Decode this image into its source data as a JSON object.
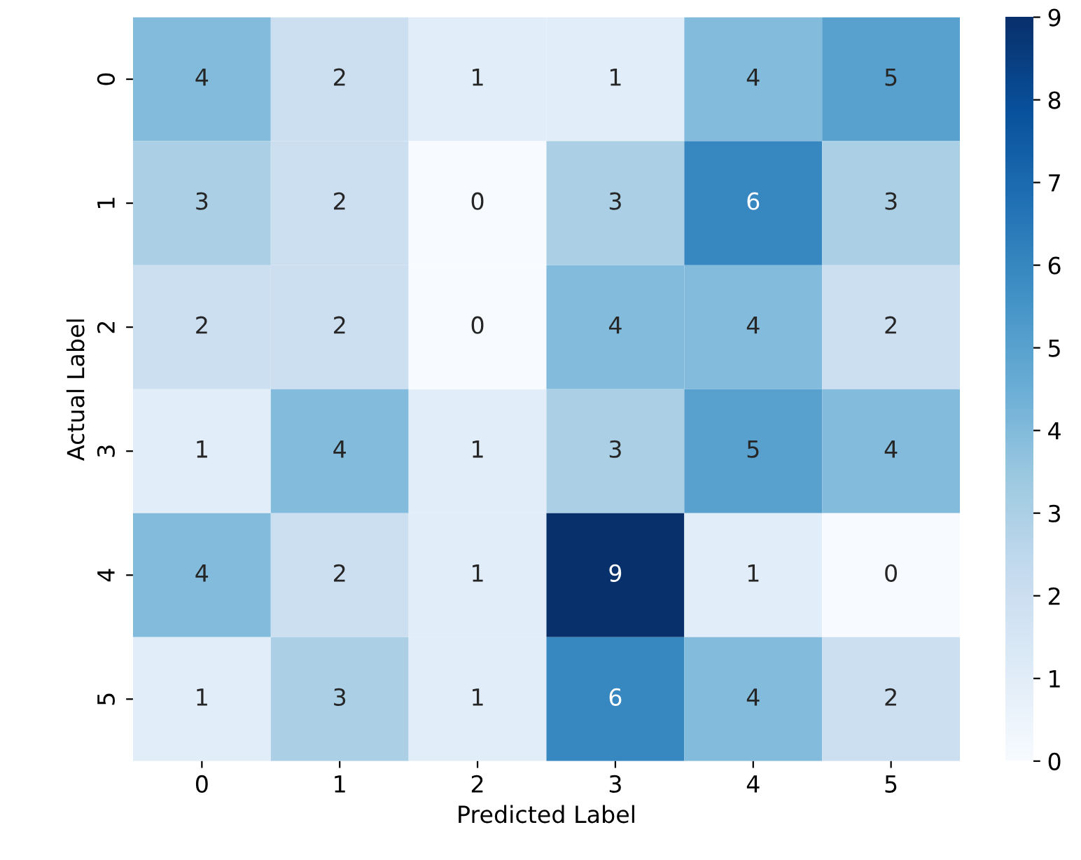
{
  "chart_data": {
    "type": "heatmap",
    "xlabel": "Predicted Label",
    "ylabel": "Actual Label",
    "categories": [
      "0",
      "1",
      "2",
      "3",
      "4",
      "5"
    ],
    "y_categories": [
      "0",
      "1",
      "2",
      "3",
      "4",
      "5"
    ],
    "cells": [
      [
        4,
        2,
        1,
        1,
        4,
        5
      ],
      [
        3,
        2,
        0,
        3,
        6,
        3
      ],
      [
        2,
        2,
        0,
        4,
        4,
        2
      ],
      [
        1,
        4,
        1,
        3,
        5,
        4
      ],
      [
        4,
        2,
        1,
        9,
        1,
        0
      ],
      [
        1,
        3,
        1,
        6,
        4,
        2
      ]
    ],
    "clim": [
      0,
      9
    ],
    "cticks": [
      0,
      1,
      2,
      3,
      4,
      5,
      6,
      7,
      8,
      9
    ],
    "data_labels": true
  }
}
